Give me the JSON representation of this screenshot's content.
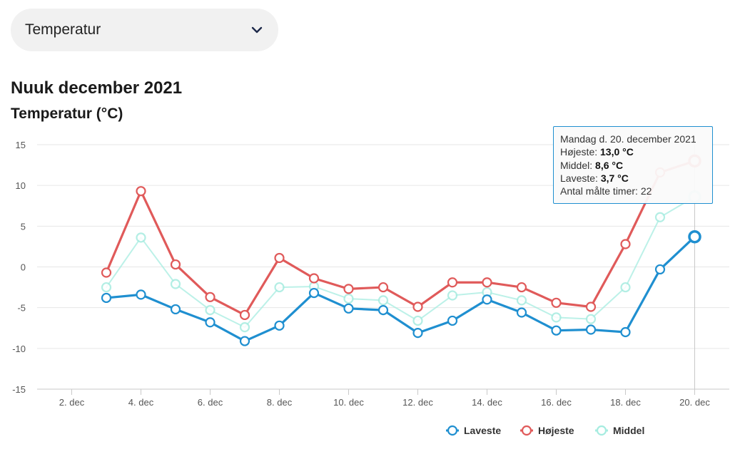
{
  "dropdown": {
    "selected": "Temperatur"
  },
  "header": {
    "title": "Nuuk december 2021",
    "subtitle": "Temperatur (°C)"
  },
  "tooltip": {
    "date": "Mandag d. 20. december 2021",
    "high_label": "Højeste: ",
    "high_value": "13,0 °C",
    "mid_label": "Middel: ",
    "mid_value": "8,6 °C",
    "low_label": "Laveste: ",
    "low_value": "3,7 °C",
    "hours_label": "Antal målte timer: ",
    "hours_value": "22"
  },
  "chart_data": {
    "type": "line",
    "title": "Nuuk december 2021",
    "ylabel": "Temperatur (°C)",
    "ylim": [
      -15,
      15
    ],
    "yticks": [
      15,
      10,
      5,
      0,
      -5,
      -10,
      -15
    ],
    "x": [
      3,
      4,
      5,
      6,
      7,
      8,
      9,
      10,
      11,
      12,
      13,
      14,
      15,
      16,
      17,
      18,
      19,
      20
    ],
    "xlim": [
      1,
      21
    ],
    "xticks": [
      2,
      4,
      6,
      8,
      10,
      12,
      14,
      16,
      18,
      20
    ],
    "xtick_labels": [
      "2. dec",
      "4. dec",
      "6. dec",
      "8. dec",
      "10. dec",
      "12. dec",
      "14. dec",
      "16. dec",
      "18. dec",
      "20. dec"
    ],
    "highlight_x": 20,
    "grid": true,
    "legend_position": "bottom-right",
    "series": [
      {
        "name": "Laveste",
        "color": "#1f8fd0",
        "values": [
          -3.8,
          -3.4,
          -5.2,
          -6.8,
          -9.1,
          -7.2,
          -3.2,
          -5.1,
          -5.3,
          -8.1,
          -6.6,
          -4.0,
          -5.6,
          -7.8,
          -7.7,
          -8.0,
          -0.3,
          3.7
        ]
      },
      {
        "name": "Højeste",
        "color": "#e05a5a",
        "values": [
          -0.7,
          9.3,
          0.3,
          -3.7,
          -5.9,
          1.1,
          -1.4,
          -2.7,
          -2.5,
          -4.9,
          -1.9,
          -1.9,
          -2.5,
          -4.4,
          -4.9,
          2.8,
          11.6,
          13.0
        ]
      },
      {
        "name": "Middel",
        "color": "#a6ece0",
        "values": [
          -2.5,
          3.6,
          -2.1,
          -5.3,
          -7.4,
          -2.5,
          -2.4,
          -3.9,
          -4.1,
          -6.6,
          -3.5,
          -3.1,
          -4.1,
          -6.2,
          -6.4,
          -2.5,
          6.1,
          8.6
        ]
      }
    ]
  }
}
